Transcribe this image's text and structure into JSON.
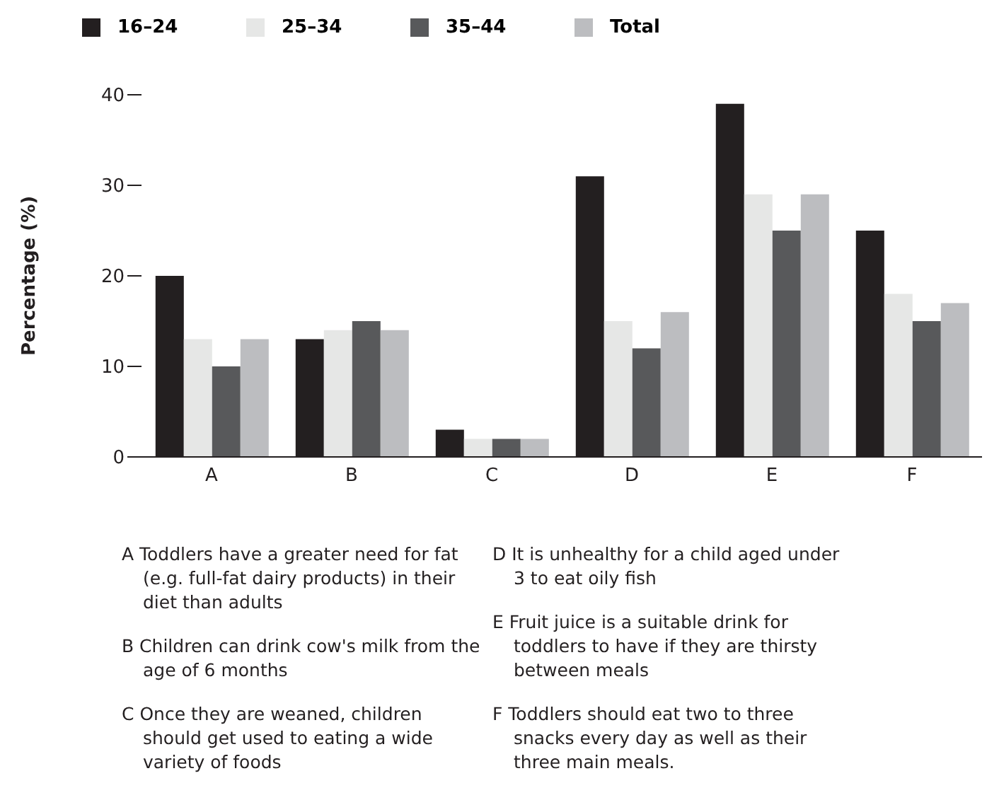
{
  "chart_data": {
    "type": "bar",
    "ylabel": "Percentage (%)",
    "categories": [
      "A",
      "B",
      "C",
      "D",
      "E",
      "F"
    ],
    "series": [
      {
        "name": "16–24",
        "color": "#231f20",
        "values": [
          20,
          13,
          3,
          31,
          39,
          25
        ]
      },
      {
        "name": "25–34",
        "color": "#e6e7e6",
        "values": [
          13,
          14,
          2,
          15,
          29,
          18
        ]
      },
      {
        "name": "35–44",
        "color": "#58595b",
        "values": [
          10,
          15,
          2,
          12,
          25,
          15
        ]
      },
      {
        "name": "Total",
        "color": "#bcbdc0",
        "values": [
          13,
          14,
          2,
          16,
          29,
          17
        ]
      }
    ],
    "ylim": [
      0,
      40
    ],
    "yticks": [
      0,
      10,
      20,
      30,
      40
    ],
    "grid": false,
    "legend": "top left",
    "annotations": [
      "A Toddlers have a greater need for fat (e.g. full-fat dairy products) in their diet than adults",
      "B Children can drink cow's milk from the age of 6 months",
      "C Once they are weaned, children should get used to eating a wide variety of foods",
      "D It is unhealthy for a child aged under 3 to eat oily fish",
      "E Fruit juice is a suitable drink for toddlers to have if they are thirsty between meals",
      "F Toddlers should eat two to three snacks every day as well as their three main meals."
    ]
  }
}
